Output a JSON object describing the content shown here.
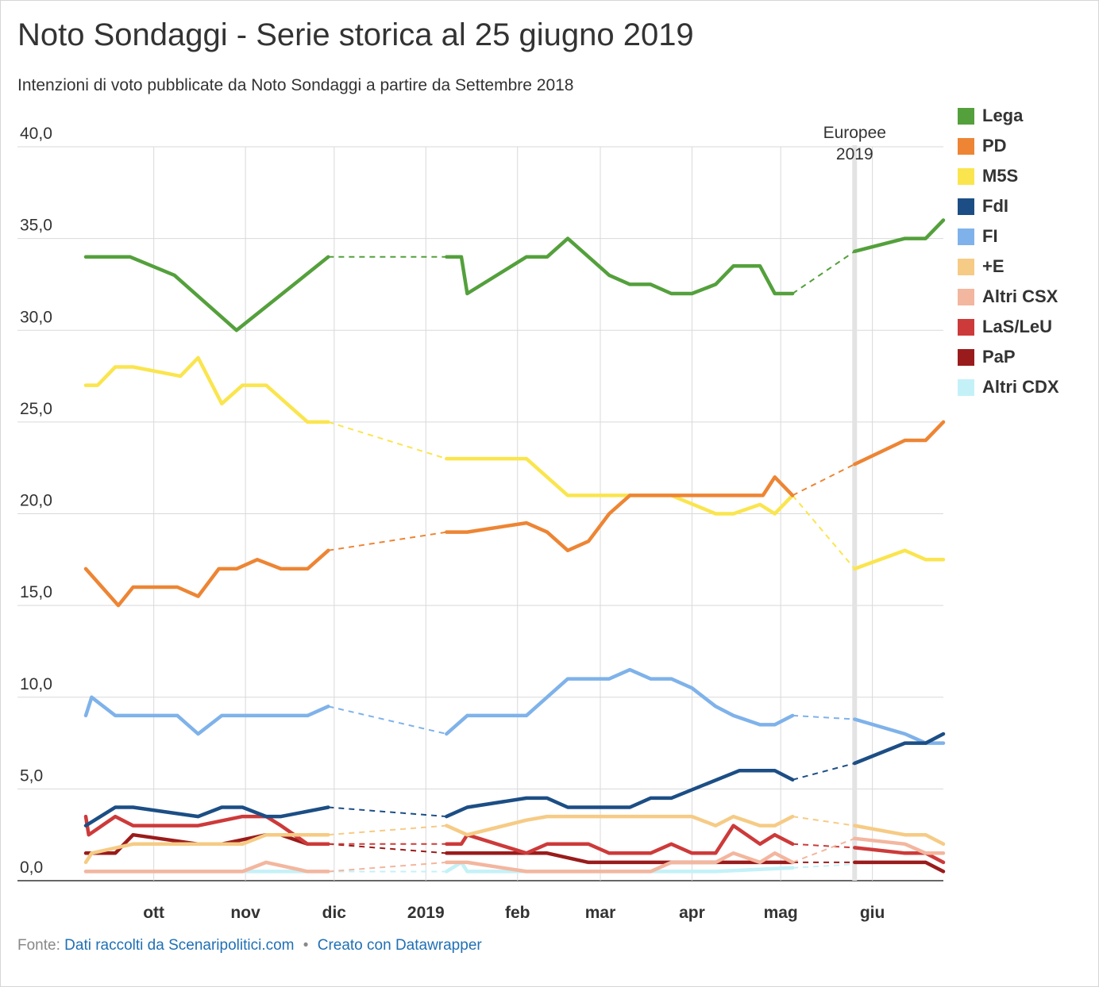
{
  "title": "Noto Sondaggi - Serie storica al 25 giugno 2019",
  "subtitle": "Intenzioni di voto pubblicate da Noto Sondaggi a partire da Settembre 2018",
  "footer": {
    "source_prefix": "Fonte:",
    "source_link": "Dati raccolti da Scenaripolitici.com",
    "separator": "•",
    "made_with": "Creato con Datawrapper"
  },
  "chart_data": {
    "type": "line",
    "title": "Noto Sondaggi - Serie storica al 25 giugno 2019",
    "subtitle": "Intenzioni di voto pubblicate da Noto Sondaggi a partire da Settembre 2018",
    "xlabel": "",
    "ylabel": "",
    "ylim": [
      0,
      40
    ],
    "xlim": [
      "2018-09-08",
      "2019-06-25"
    ],
    "yticks": [
      0,
      5,
      10,
      15,
      20,
      25,
      30,
      35,
      40
    ],
    "ytick_labels": [
      "0,0",
      "5,0",
      "10,0",
      "15,0",
      "20,0",
      "25,0",
      "30,0",
      "35,0",
      "40,0"
    ],
    "xticks": [
      {
        "date": "2018-10-01",
        "label": "ott"
      },
      {
        "date": "2018-11-01",
        "label": "nov"
      },
      {
        "date": "2018-12-01",
        "label": "dic"
      },
      {
        "date": "2019-01-01",
        "label": "2019"
      },
      {
        "date": "2019-02-01",
        "label": "feb"
      },
      {
        "date": "2019-03-01",
        "label": "mar"
      },
      {
        "date": "2019-04-01",
        "label": "apr"
      },
      {
        "date": "2019-05-01",
        "label": "mag"
      },
      {
        "date": "2019-06-01",
        "label": "giu"
      }
    ],
    "grid": true,
    "legend_position": "right",
    "annotation": {
      "date": "2019-05-26",
      "label": "Europee 2019"
    },
    "dashed_gaps": [
      [
        "2018-11-29",
        "2019-01-08"
      ],
      [
        "2019-05-05",
        "2019-05-26"
      ]
    ],
    "series": [
      {
        "name": "Lega",
        "color": "#54a03c",
        "points": [
          [
            "2018-09-08",
            34.0
          ],
          [
            "2018-09-23",
            34.0
          ],
          [
            "2018-10-08",
            33.0
          ],
          [
            "2018-10-29",
            30.0
          ],
          [
            "2018-11-29",
            34.0
          ],
          [
            "2019-01-08",
            34.0
          ],
          [
            "2019-01-13",
            34.0
          ],
          [
            "2019-01-15",
            32.0
          ],
          [
            "2019-02-04",
            34.0
          ],
          [
            "2019-02-11",
            34.0
          ],
          [
            "2019-02-18",
            35.0
          ],
          [
            "2019-03-04",
            33.0
          ],
          [
            "2019-03-11",
            32.5
          ],
          [
            "2019-03-18",
            32.5
          ],
          [
            "2019-03-25",
            32.0
          ],
          [
            "2019-04-01",
            32.0
          ],
          [
            "2019-04-09",
            32.5
          ],
          [
            "2019-04-15",
            33.5
          ],
          [
            "2019-04-24",
            33.5
          ],
          [
            "2019-04-29",
            32.0
          ],
          [
            "2019-05-05",
            32.0
          ],
          [
            "2019-05-26",
            34.3
          ],
          [
            "2019-06-12",
            35.0
          ],
          [
            "2019-06-19",
            35.0
          ],
          [
            "2019-06-25",
            36.0
          ]
        ]
      },
      {
        "name": "PD",
        "color": "#ed8534",
        "points": [
          [
            "2018-09-08",
            17.0
          ],
          [
            "2018-09-19",
            15.0
          ],
          [
            "2018-09-24",
            16.0
          ],
          [
            "2018-10-09",
            16.0
          ],
          [
            "2018-10-16",
            15.5
          ],
          [
            "2018-10-23",
            17.0
          ],
          [
            "2018-10-29",
            17.0
          ],
          [
            "2018-11-05",
            17.5
          ],
          [
            "2018-11-13",
            17.0
          ],
          [
            "2018-11-22",
            17.0
          ],
          [
            "2018-11-29",
            18.0
          ],
          [
            "2019-01-08",
            19.0
          ],
          [
            "2019-01-15",
            19.0
          ],
          [
            "2019-02-04",
            19.5
          ],
          [
            "2019-02-11",
            19.0
          ],
          [
            "2019-02-18",
            18.0
          ],
          [
            "2019-02-25",
            18.5
          ],
          [
            "2019-03-04",
            20.0
          ],
          [
            "2019-03-11",
            21.0
          ],
          [
            "2019-04-25",
            21.0
          ],
          [
            "2019-04-29",
            22.0
          ],
          [
            "2019-05-05",
            21.0
          ],
          [
            "2019-05-26",
            22.7
          ],
          [
            "2019-06-12",
            24.0
          ],
          [
            "2019-06-19",
            24.0
          ],
          [
            "2019-06-25",
            25.0
          ]
        ]
      },
      {
        "name": "M5S",
        "color": "#fae54e",
        "points": [
          [
            "2018-09-08",
            27.0
          ],
          [
            "2018-09-12",
            27.0
          ],
          [
            "2018-09-18",
            28.0
          ],
          [
            "2018-09-24",
            28.0
          ],
          [
            "2018-10-10",
            27.5
          ],
          [
            "2018-10-16",
            28.5
          ],
          [
            "2018-10-24",
            26.0
          ],
          [
            "2018-10-31",
            27.0
          ],
          [
            "2018-11-08",
            27.0
          ],
          [
            "2018-11-22",
            25.0
          ],
          [
            "2018-11-29",
            25.0
          ],
          [
            "2019-01-08",
            23.0
          ],
          [
            "2019-02-04",
            23.0
          ],
          [
            "2019-02-18",
            21.0
          ],
          [
            "2019-03-25",
            21.0
          ],
          [
            "2019-04-09",
            20.0
          ],
          [
            "2019-04-15",
            20.0
          ],
          [
            "2019-04-24",
            20.5
          ],
          [
            "2019-04-29",
            20.0
          ],
          [
            "2019-05-05",
            21.0
          ],
          [
            "2019-05-26",
            17.0
          ],
          [
            "2019-06-12",
            18.0
          ],
          [
            "2019-06-19",
            17.5
          ],
          [
            "2019-06-25",
            17.5
          ]
        ]
      },
      {
        "name": "FdI",
        "color": "#1c4e85",
        "points": [
          [
            "2018-09-08",
            3.0
          ],
          [
            "2018-09-18",
            4.0
          ],
          [
            "2018-09-24",
            4.0
          ],
          [
            "2018-10-16",
            3.5
          ],
          [
            "2018-10-24",
            4.0
          ],
          [
            "2018-10-31",
            4.0
          ],
          [
            "2018-11-08",
            3.5
          ],
          [
            "2018-11-13",
            3.5
          ],
          [
            "2018-11-29",
            4.0
          ],
          [
            "2019-01-08",
            3.5
          ],
          [
            "2019-01-15",
            4.0
          ],
          [
            "2019-02-04",
            4.5
          ],
          [
            "2019-02-11",
            4.5
          ],
          [
            "2019-02-18",
            4.0
          ],
          [
            "2019-03-11",
            4.0
          ],
          [
            "2019-03-18",
            4.5
          ],
          [
            "2019-03-25",
            4.5
          ],
          [
            "2019-04-17",
            6.0
          ],
          [
            "2019-04-29",
            6.0
          ],
          [
            "2019-05-05",
            5.5
          ],
          [
            "2019-05-26",
            6.4
          ],
          [
            "2019-06-12",
            7.5
          ],
          [
            "2019-06-19",
            7.5
          ],
          [
            "2019-06-25",
            8.0
          ]
        ]
      },
      {
        "name": "FI",
        "color": "#7fb2ea",
        "points": [
          [
            "2018-09-08",
            9.0
          ],
          [
            "2018-09-10",
            10.0
          ],
          [
            "2018-09-18",
            9.0
          ],
          [
            "2018-10-09",
            9.0
          ],
          [
            "2018-10-16",
            8.0
          ],
          [
            "2018-10-24",
            9.0
          ],
          [
            "2018-11-22",
            9.0
          ],
          [
            "2018-11-29",
            9.5
          ],
          [
            "2019-01-08",
            8.0
          ],
          [
            "2019-01-15",
            9.0
          ],
          [
            "2019-02-04",
            9.0
          ],
          [
            "2019-02-18",
            11.0
          ],
          [
            "2019-03-04",
            11.0
          ],
          [
            "2019-03-11",
            11.5
          ],
          [
            "2019-03-18",
            11.0
          ],
          [
            "2019-03-25",
            11.0
          ],
          [
            "2019-04-01",
            10.5
          ],
          [
            "2019-04-09",
            9.5
          ],
          [
            "2019-04-15",
            9.0
          ],
          [
            "2019-04-24",
            8.5
          ],
          [
            "2019-04-29",
            8.5
          ],
          [
            "2019-05-05",
            9.0
          ],
          [
            "2019-05-26",
            8.8
          ],
          [
            "2019-06-12",
            8.0
          ],
          [
            "2019-06-19",
            7.5
          ],
          [
            "2019-06-25",
            7.5
          ]
        ]
      },
      {
        "name": "+E",
        "color": "#f6cb85",
        "points": [
          [
            "2018-09-08",
            1.0
          ],
          [
            "2018-09-10",
            1.5
          ],
          [
            "2018-09-24",
            2.0
          ],
          [
            "2018-10-09",
            2.0
          ],
          [
            "2018-10-31",
            2.0
          ],
          [
            "2018-11-08",
            2.5
          ],
          [
            "2018-11-29",
            2.5
          ],
          [
            "2019-01-08",
            3.0
          ],
          [
            "2019-01-15",
            2.5
          ],
          [
            "2019-02-04",
            3.3
          ],
          [
            "2019-02-11",
            3.5
          ],
          [
            "2019-03-25",
            3.5
          ],
          [
            "2019-04-01",
            3.5
          ],
          [
            "2019-04-09",
            3.0
          ],
          [
            "2019-04-15",
            3.5
          ],
          [
            "2019-04-24",
            3.0
          ],
          [
            "2019-04-29",
            3.0
          ],
          [
            "2019-05-05",
            3.5
          ],
          [
            "2019-05-26",
            3.0
          ],
          [
            "2019-06-12",
            2.5
          ],
          [
            "2019-06-19",
            2.5
          ],
          [
            "2019-06-25",
            2.0
          ]
        ]
      },
      {
        "name": "Altri CSX",
        "color": "#f3b69f",
        "points": [
          [
            "2018-09-08",
            0.5
          ],
          [
            "2018-10-31",
            0.5
          ],
          [
            "2018-11-08",
            1.0
          ],
          [
            "2018-11-22",
            0.5
          ],
          [
            "2018-11-29",
            0.5
          ],
          [
            "2019-01-08",
            1.0
          ],
          [
            "2019-01-15",
            1.0
          ],
          [
            "2019-02-04",
            0.5
          ],
          [
            "2019-03-18",
            0.5
          ],
          [
            "2019-03-25",
            1.0
          ],
          [
            "2019-04-09",
            1.0
          ],
          [
            "2019-04-15",
            1.5
          ],
          [
            "2019-04-24",
            1.0
          ],
          [
            "2019-04-29",
            1.5
          ],
          [
            "2019-05-05",
            1.0
          ],
          [
            "2019-05-26",
            2.3
          ],
          [
            "2019-06-12",
            2.0
          ],
          [
            "2019-06-19",
            1.5
          ],
          [
            "2019-06-25",
            1.5
          ]
        ]
      },
      {
        "name": "LaS/LeU",
        "color": "#cd3a3a",
        "points": [
          [
            "2018-09-08",
            3.5
          ],
          [
            "2018-09-09",
            2.5
          ],
          [
            "2018-09-18",
            3.5
          ],
          [
            "2018-09-24",
            3.0
          ],
          [
            "2018-10-16",
            3.0
          ],
          [
            "2018-10-31",
            3.5
          ],
          [
            "2018-11-08",
            3.5
          ],
          [
            "2018-11-13",
            3.0
          ],
          [
            "2018-11-22",
            2.0
          ],
          [
            "2018-11-29",
            2.0
          ],
          [
            "2019-01-08",
            2.0
          ],
          [
            "2019-01-13",
            2.0
          ],
          [
            "2019-01-15",
            2.5
          ],
          [
            "2019-02-04",
            1.5
          ],
          [
            "2019-02-11",
            2.0
          ],
          [
            "2019-02-25",
            2.0
          ],
          [
            "2019-03-04",
            1.5
          ],
          [
            "2019-03-18",
            1.5
          ],
          [
            "2019-03-25",
            2.0
          ],
          [
            "2019-04-01",
            1.5
          ],
          [
            "2019-04-09",
            1.5
          ],
          [
            "2019-04-15",
            3.0
          ],
          [
            "2019-04-24",
            2.0
          ],
          [
            "2019-04-29",
            2.5
          ],
          [
            "2019-05-05",
            2.0
          ],
          [
            "2019-05-26",
            1.8
          ],
          [
            "2019-06-12",
            1.5
          ],
          [
            "2019-06-19",
            1.5
          ],
          [
            "2019-06-25",
            1.0
          ]
        ]
      },
      {
        "name": "PaP",
        "color": "#9a1b1b",
        "points": [
          [
            "2018-09-08",
            1.5
          ],
          [
            "2018-09-18",
            1.5
          ],
          [
            "2018-09-24",
            2.5
          ],
          [
            "2018-10-16",
            2.0
          ],
          [
            "2018-10-24",
            2.0
          ],
          [
            "2018-11-08",
            2.5
          ],
          [
            "2018-11-13",
            2.5
          ],
          [
            "2018-11-22",
            2.0
          ],
          [
            "2018-11-29",
            2.0
          ],
          [
            "2019-01-08",
            1.5
          ],
          [
            "2019-02-11",
            1.5
          ],
          [
            "2019-02-25",
            1.0
          ],
          [
            "2019-05-05",
            1.0
          ],
          [
            "2019-05-26",
            1.0
          ],
          [
            "2019-06-12",
            1.0
          ],
          [
            "2019-06-19",
            1.0
          ],
          [
            "2019-06-25",
            0.5
          ]
        ]
      },
      {
        "name": "Altri CDX",
        "color": "#c4f1f8",
        "points": [
          [
            "2018-09-08",
            0.5
          ],
          [
            "2018-11-29",
            0.5
          ],
          [
            "2019-01-08",
            0.5
          ],
          [
            "2019-01-13",
            1.0
          ],
          [
            "2019-01-15",
            0.5
          ],
          [
            "2019-04-09",
            0.5
          ],
          [
            "2019-05-05",
            0.7
          ],
          [
            "2019-05-26",
            0.9
          ]
        ]
      }
    ]
  }
}
